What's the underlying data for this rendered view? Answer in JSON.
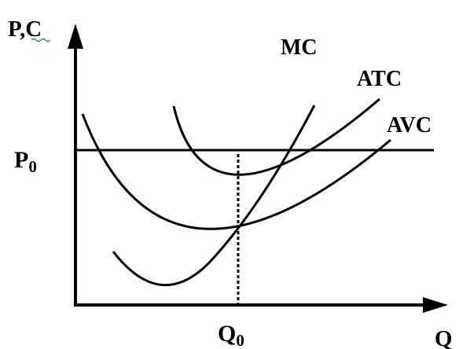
{
  "axes": {
    "y_label": "P,C",
    "x_label": "Q"
  },
  "curves": {
    "mc": "MC",
    "atc": "ATC",
    "avc": "AVC"
  },
  "price": {
    "label_main": "P",
    "label_sub": "0"
  },
  "quantity": {
    "label_main": "Q",
    "label_sub": "0"
  },
  "colors": {
    "ink": "#000000",
    "background": "#ffffff",
    "spellcheck_underline": "#2e8b57"
  }
}
